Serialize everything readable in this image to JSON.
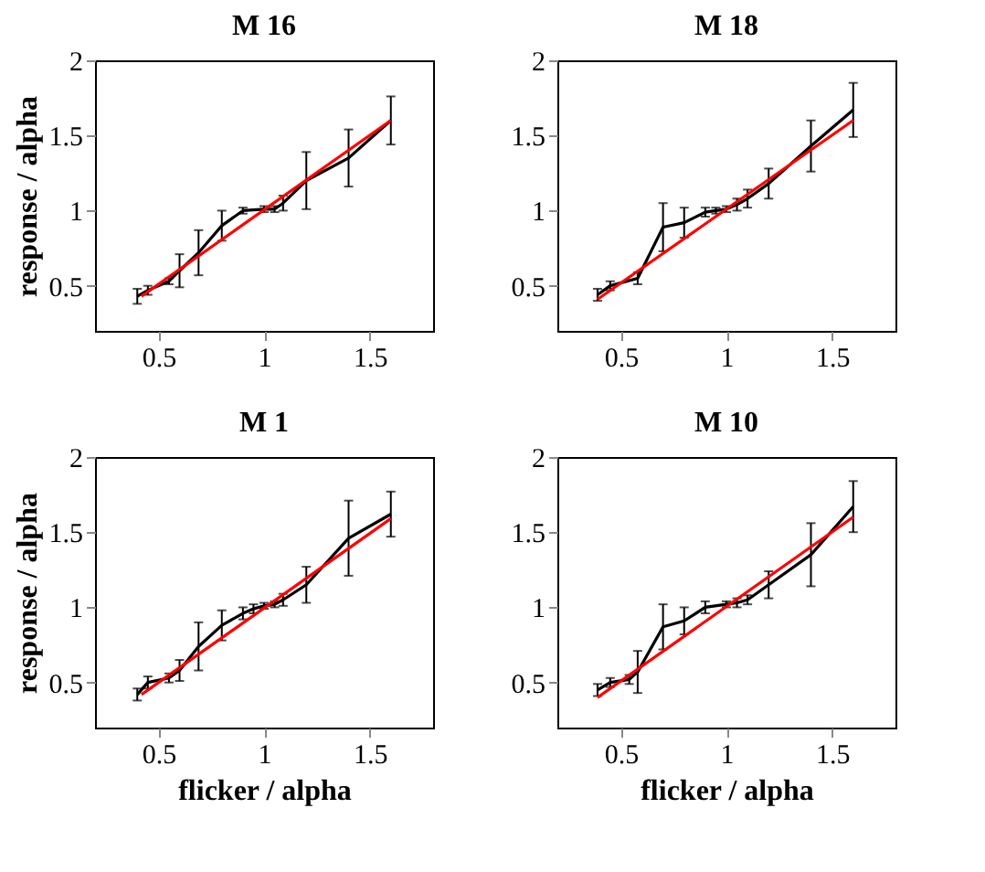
{
  "chart_data": [
    {
      "type": "line",
      "title": "M 16",
      "ylabel": "response / alpha",
      "xlim": [
        0.2,
        1.8
      ],
      "ylim": [
        0.2,
        2
      ],
      "xticks": [
        0.5,
        1,
        1.5
      ],
      "yticks": [
        0.5,
        1,
        1.5,
        2
      ],
      "grid": false,
      "marker": "none",
      "line_style": "solid",
      "series": [
        {
          "color": "#000000",
          "x": [
            0.4,
            0.45,
            0.55,
            0.6,
            0.69,
            0.8,
            0.9,
            1.0,
            1.05,
            1.09,
            1.2,
            1.4,
            1.6
          ],
          "values": [
            0.43,
            0.47,
            0.53,
            0.6,
            0.72,
            0.9,
            1.0,
            1.01,
            1.01,
            1.05,
            1.2,
            1.35,
            1.6
          ],
          "errors": [
            0.05,
            0.03,
            0.02,
            0.11,
            0.15,
            0.1,
            0.02,
            0.02,
            0.02,
            0.05,
            0.19,
            0.19,
            0.16
          ]
        },
        {
          "color": "#ff0000",
          "x": [
            0.42,
            1.6
          ],
          "values": [
            0.43,
            1.6
          ]
        }
      ]
    },
    {
      "type": "line",
      "title": "M 18",
      "xlim": [
        0.2,
        1.8
      ],
      "ylim": [
        0.2,
        2
      ],
      "xticks": [
        0.5,
        1,
        1.5
      ],
      "yticks": [
        0.5,
        1,
        1.5,
        2
      ],
      "grid": false,
      "marker": "none",
      "line_style": "solid",
      "series": [
        {
          "color": "#000000",
          "x": [
            0.39,
            0.45,
            0.58,
            0.7,
            0.8,
            0.9,
            0.95,
            1.0,
            1.05,
            1.1,
            1.2,
            1.4,
            1.6
          ],
          "values": [
            0.44,
            0.5,
            0.55,
            0.89,
            0.92,
            0.99,
            1.0,
            1.01,
            1.04,
            1.08,
            1.18,
            1.43,
            1.67
          ],
          "errors": [
            0.04,
            0.03,
            0.04,
            0.16,
            0.1,
            0.03,
            0.02,
            0.02,
            0.04,
            0.06,
            0.1,
            0.17,
            0.18
          ]
        },
        {
          "color": "#ff0000",
          "x": [
            0.39,
            1.6
          ],
          "values": [
            0.41,
            1.6
          ]
        }
      ]
    },
    {
      "type": "line",
      "title": "M 1",
      "xlabel": "flicker / alpha",
      "ylabel": "response / alpha",
      "xlim": [
        0.2,
        1.8
      ],
      "ylim": [
        0.2,
        2
      ],
      "xticks": [
        0.5,
        1,
        1.5
      ],
      "yticks": [
        0.5,
        1,
        1.5,
        2
      ],
      "grid": false,
      "marker": "none",
      "line_style": "solid",
      "series": [
        {
          "color": "#000000",
          "x": [
            0.4,
            0.45,
            0.55,
            0.6,
            0.69,
            0.8,
            0.9,
            0.95,
            1.0,
            1.05,
            1.09,
            1.2,
            1.4,
            1.6
          ],
          "values": [
            0.42,
            0.5,
            0.53,
            0.58,
            0.74,
            0.88,
            0.96,
            0.99,
            1.01,
            1.02,
            1.05,
            1.15,
            1.46,
            1.62
          ],
          "errors": [
            0.04,
            0.04,
            0.03,
            0.07,
            0.16,
            0.1,
            0.04,
            0.03,
            0.02,
            0.02,
            0.04,
            0.12,
            0.25,
            0.15
          ]
        },
        {
          "color": "#ff0000",
          "x": [
            0.42,
            1.6
          ],
          "values": [
            0.42,
            1.59
          ]
        }
      ]
    },
    {
      "type": "line",
      "title": "M 10",
      "xlabel": "flicker / alpha",
      "xlim": [
        0.2,
        1.8
      ],
      "ylim": [
        0.2,
        2
      ],
      "xticks": [
        0.5,
        1,
        1.5
      ],
      "yticks": [
        0.5,
        1,
        1.5,
        2
      ],
      "grid": false,
      "marker": "none",
      "line_style": "solid",
      "series": [
        {
          "color": "#000000",
          "x": [
            0.39,
            0.45,
            0.54,
            0.58,
            0.7,
            0.8,
            0.9,
            1.0,
            1.05,
            1.1,
            1.2,
            1.4,
            1.6
          ],
          "values": [
            0.45,
            0.5,
            0.52,
            0.57,
            0.87,
            0.91,
            1.0,
            1.02,
            1.03,
            1.05,
            1.15,
            1.35,
            1.67
          ],
          "errors": [
            0.04,
            0.03,
            0.03,
            0.14,
            0.15,
            0.09,
            0.04,
            0.02,
            0.03,
            0.03,
            0.09,
            0.21,
            0.17
          ]
        },
        {
          "color": "#ff0000",
          "x": [
            0.39,
            1.6
          ],
          "values": [
            0.4,
            1.6
          ]
        }
      ]
    }
  ]
}
